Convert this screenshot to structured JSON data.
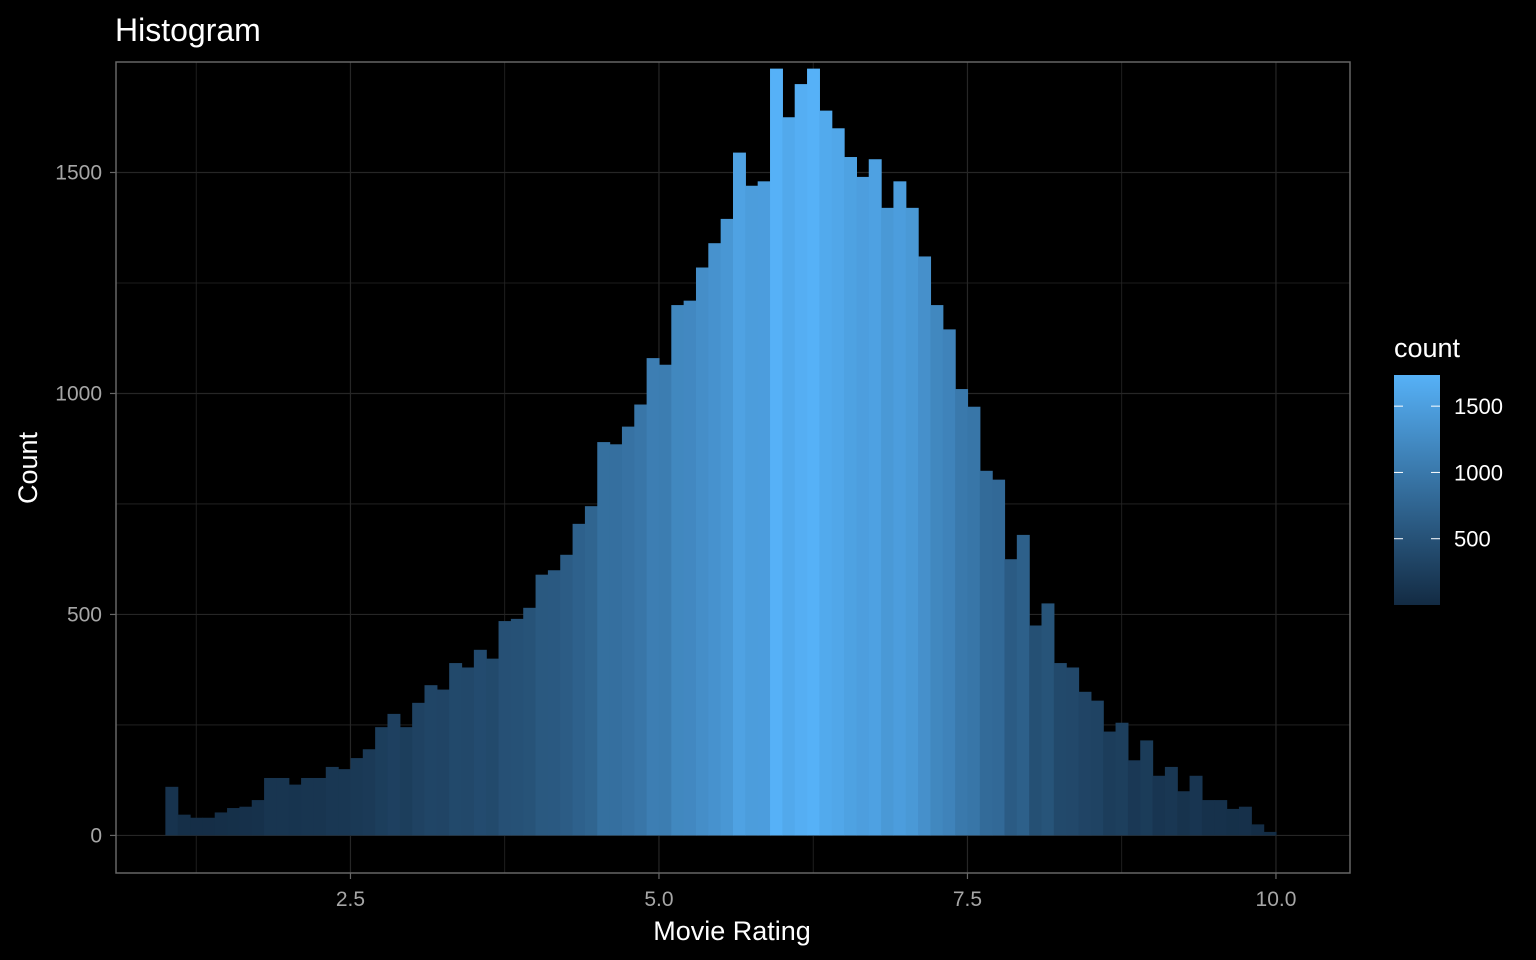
{
  "chart_data": {
    "type": "bar",
    "title": "Histogram",
    "xlabel": "Movie Rating",
    "ylabel": "Count",
    "xlim": [
      0.6,
      10.6
    ],
    "ylim": [
      -85,
      1750
    ],
    "x_ticks": [
      2.5,
      5.0,
      7.5,
      10.0
    ],
    "x_tick_labels": [
      "2.5",
      "5.0",
      "7.5",
      "10.0"
    ],
    "y_ticks": [
      0,
      500,
      1000,
      1500
    ],
    "y_tick_labels": [
      "0",
      "500",
      "1000",
      "1500"
    ],
    "grid": true,
    "bin_width": 0.1,
    "bins": [
      {
        "x": 1.05,
        "count": 110
      },
      {
        "x": 1.15,
        "count": 47
      },
      {
        "x": 1.25,
        "count": 40
      },
      {
        "x": 1.35,
        "count": 40
      },
      {
        "x": 1.45,
        "count": 52
      },
      {
        "x": 1.55,
        "count": 62
      },
      {
        "x": 1.65,
        "count": 65
      },
      {
        "x": 1.75,
        "count": 80
      },
      {
        "x": 1.85,
        "count": 130
      },
      {
        "x": 1.95,
        "count": 130
      },
      {
        "x": 2.05,
        "count": 115
      },
      {
        "x": 2.15,
        "count": 130
      },
      {
        "x": 2.25,
        "count": 130
      },
      {
        "x": 2.35,
        "count": 155
      },
      {
        "x": 2.45,
        "count": 150
      },
      {
        "x": 2.55,
        "count": 175
      },
      {
        "x": 2.65,
        "count": 195
      },
      {
        "x": 2.75,
        "count": 245
      },
      {
        "x": 2.85,
        "count": 275
      },
      {
        "x": 2.95,
        "count": 245
      },
      {
        "x": 3.05,
        "count": 300
      },
      {
        "x": 3.15,
        "count": 340
      },
      {
        "x": 3.25,
        "count": 330
      },
      {
        "x": 3.35,
        "count": 390
      },
      {
        "x": 3.45,
        "count": 380
      },
      {
        "x": 3.55,
        "count": 420
      },
      {
        "x": 3.65,
        "count": 400
      },
      {
        "x": 3.75,
        "count": 485
      },
      {
        "x": 3.85,
        "count": 490
      },
      {
        "x": 3.95,
        "count": 515
      },
      {
        "x": 4.05,
        "count": 590
      },
      {
        "x": 4.15,
        "count": 600
      },
      {
        "x": 4.25,
        "count": 635
      },
      {
        "x": 4.35,
        "count": 705
      },
      {
        "x": 4.45,
        "count": 745
      },
      {
        "x": 4.55,
        "count": 890
      },
      {
        "x": 4.65,
        "count": 885
      },
      {
        "x": 4.75,
        "count": 925
      },
      {
        "x": 4.85,
        "count": 975
      },
      {
        "x": 4.95,
        "count": 1080
      },
      {
        "x": 5.05,
        "count": 1065
      },
      {
        "x": 5.15,
        "count": 1200
      },
      {
        "x": 5.25,
        "count": 1210
      },
      {
        "x": 5.35,
        "count": 1285
      },
      {
        "x": 5.45,
        "count": 1340
      },
      {
        "x": 5.55,
        "count": 1395
      },
      {
        "x": 5.65,
        "count": 1545
      },
      {
        "x": 5.75,
        "count": 1470
      },
      {
        "x": 5.85,
        "count": 1480
      },
      {
        "x": 5.95,
        "count": 1735
      },
      {
        "x": 6.05,
        "count": 1625
      },
      {
        "x": 6.15,
        "count": 1700
      },
      {
        "x": 6.25,
        "count": 1735
      },
      {
        "x": 6.35,
        "count": 1640
      },
      {
        "x": 6.45,
        "count": 1600
      },
      {
        "x": 6.55,
        "count": 1535
      },
      {
        "x": 6.65,
        "count": 1490
      },
      {
        "x": 6.75,
        "count": 1530
      },
      {
        "x": 6.85,
        "count": 1420
      },
      {
        "x": 6.95,
        "count": 1480
      },
      {
        "x": 7.05,
        "count": 1420
      },
      {
        "x": 7.15,
        "count": 1310
      },
      {
        "x": 7.25,
        "count": 1200
      },
      {
        "x": 7.35,
        "count": 1145
      },
      {
        "x": 7.45,
        "count": 1010
      },
      {
        "x": 7.55,
        "count": 970
      },
      {
        "x": 7.65,
        "count": 825
      },
      {
        "x": 7.75,
        "count": 805
      },
      {
        "x": 7.85,
        "count": 625
      },
      {
        "x": 7.95,
        "count": 680
      },
      {
        "x": 8.05,
        "count": 475
      },
      {
        "x": 8.15,
        "count": 525
      },
      {
        "x": 8.25,
        "count": 390
      },
      {
        "x": 8.35,
        "count": 380
      },
      {
        "x": 8.45,
        "count": 325
      },
      {
        "x": 8.55,
        "count": 305
      },
      {
        "x": 8.65,
        "count": 235
      },
      {
        "x": 8.75,
        "count": 255
      },
      {
        "x": 8.85,
        "count": 170
      },
      {
        "x": 8.95,
        "count": 215
      },
      {
        "x": 9.05,
        "count": 135
      },
      {
        "x": 9.15,
        "count": 155
      },
      {
        "x": 9.25,
        "count": 100
      },
      {
        "x": 9.35,
        "count": 135
      },
      {
        "x": 9.45,
        "count": 80
      },
      {
        "x": 9.55,
        "count": 80
      },
      {
        "x": 9.65,
        "count": 60
      },
      {
        "x": 9.75,
        "count": 65
      },
      {
        "x": 9.85,
        "count": 25
      },
      {
        "x": 9.95,
        "count": 8
      }
    ],
    "legend": {
      "title": "count",
      "placement": "right",
      "range": [
        0,
        1735
      ],
      "breaks": [
        500,
        1000,
        1500
      ],
      "break_labels": [
        "500",
        "1000",
        "1500"
      ]
    },
    "colors": {
      "background": "#000000",
      "grid": "#262626",
      "border": "#666666",
      "low": "#132B43",
      "high": "#56B1F7"
    }
  }
}
